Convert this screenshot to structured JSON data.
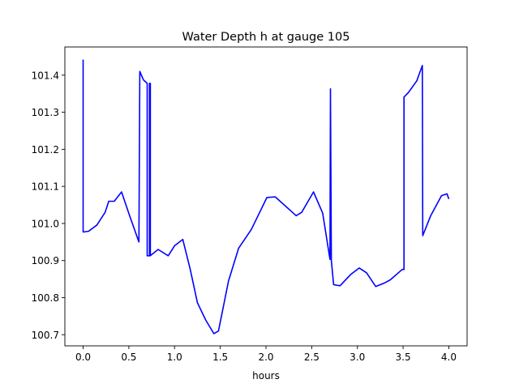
{
  "chart_data": {
    "type": "line",
    "title": "Water Depth h at gauge 105",
    "xlabel": "hours",
    "ylabel": "",
    "xlim": [
      -0.2,
      4.2
    ],
    "ylim": [
      100.67,
      101.476
    ],
    "xticks": [
      0.0,
      0.5,
      1.0,
      1.5,
      2.0,
      2.5,
      3.0,
      3.5,
      4.0
    ],
    "xtick_labels": [
      "0.0",
      "0.5",
      "1.0",
      "1.5",
      "2.0",
      "2.5",
      "3.0",
      "3.5",
      "4.0"
    ],
    "yticks": [
      100.7,
      100.8,
      100.9,
      101.0,
      101.1,
      101.2,
      101.3,
      101.4
    ],
    "ytick_labels": [
      "100.7",
      "100.8",
      "100.9",
      "101.0",
      "101.1",
      "101.2",
      "101.3",
      "101.4"
    ],
    "grid": false,
    "series": [
      {
        "name": "h",
        "color": "#0000ff",
        "x": [
          0,
          0,
          0.06,
          0.15,
          0.24,
          0.28,
          0.34,
          0.42,
          0.51,
          0.61,
          0.62,
          0.66,
          0.7,
          0.7,
          0.725,
          0.725,
          0.735,
          0.735,
          0.745,
          0.82,
          0.93,
          1.0,
          1.09,
          1.17,
          1.25,
          1.34,
          1.43,
          1.48,
          1.59,
          1.7,
          1.84,
          2.01,
          2.1,
          2.24,
          2.33,
          2.39,
          2.52,
          2.62,
          2.7,
          2.705,
          2.715,
          2.74,
          2.81,
          2.93,
          3.02,
          3.1,
          3.2,
          3.3,
          3.36,
          3.49,
          3.51,
          3.51,
          3.56,
          3.65,
          3.71,
          3.715,
          3.8,
          3.92,
          3.98,
          4.0
        ],
        "y": [
          101.442,
          100.977,
          100.979,
          100.996,
          101.03,
          101.06,
          101.06,
          101.085,
          101.02,
          100.95,
          101.41,
          101.387,
          101.378,
          100.913,
          100.913,
          101.378,
          101.378,
          100.913,
          100.915,
          100.93,
          100.913,
          100.94,
          100.957,
          100.878,
          100.786,
          100.74,
          100.703,
          100.71,
          100.845,
          100.933,
          100.984,
          101.07,
          101.072,
          101.041,
          101.021,
          101.03,
          101.085,
          101.028,
          100.903,
          101.363,
          100.9,
          100.835,
          100.832,
          100.863,
          100.88,
          100.867,
          100.83,
          100.84,
          100.848,
          100.876,
          100.876,
          101.341,
          101.354,
          101.385,
          101.426,
          100.967,
          101.02,
          101.075,
          101.08,
          101.066
        ]
      }
    ]
  }
}
